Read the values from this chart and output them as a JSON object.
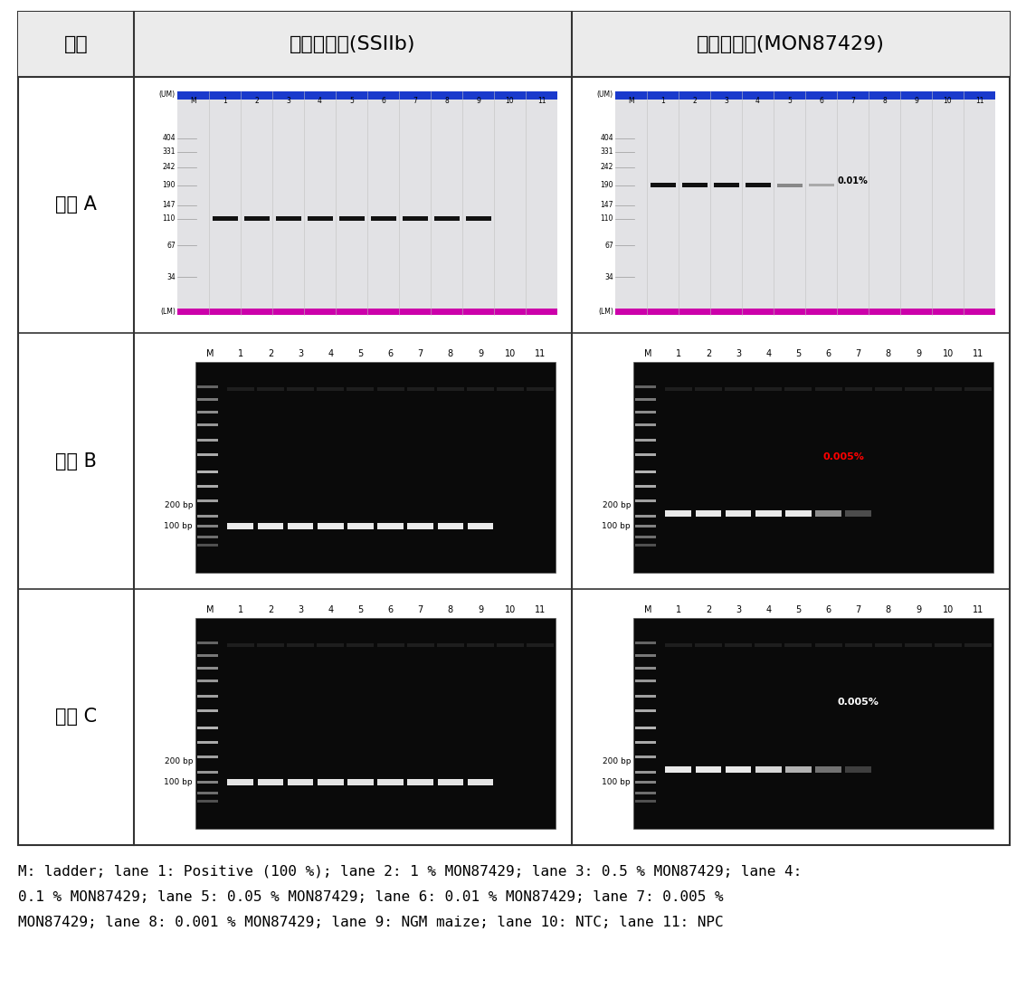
{
  "header_col": "기관",
  "header_col2": "내재유전자(SSIIb)",
  "header_col3": "구조유전자(MON87429)",
  "row_labels": [
    "기관 A",
    "기관 B",
    "기관 C"
  ],
  "caption_line1": "M: ladder; lane 1: Positive (100 %); lane 2: 1 % MON87429; lane 3: 0.5 % MON87429; lane 4:",
  "caption_line2": "0.1 % MON87429; lane 5: 0.05 % MON87429; lane 6: 0.01 % MON87429; lane 7: 0.005 %",
  "caption_line3": "MON87429; lane 8: 0.001 % MON87429; lane 9: NGM maize; lane 10: NTC; lane 11: NPC"
}
